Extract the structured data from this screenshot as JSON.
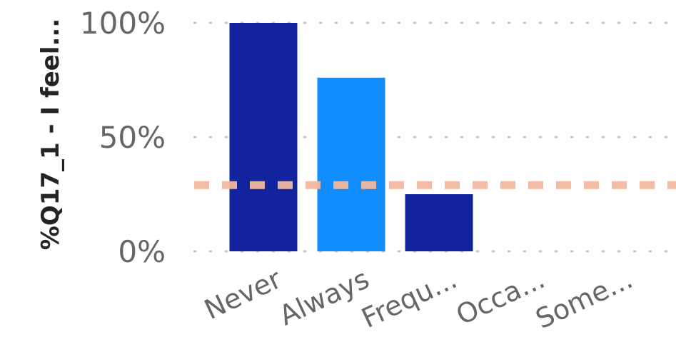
{
  "chart_data": {
    "type": "bar",
    "title": "",
    "xlabel": "",
    "ylabel": "%Q17_1 - I feel...",
    "categories": [
      "Never",
      "Always",
      "Frequ...",
      "Occa...",
      "Some..."
    ],
    "values": [
      100,
      76,
      25,
      0,
      0
    ],
    "bar_colors": [
      "#12239E",
      "#118DFF",
      "#12239E",
      "#12239E",
      "#12239E"
    ],
    "ylim": [
      0,
      100
    ],
    "yticks": [
      0,
      50,
      100
    ],
    "ytick_labels": [
      "0%",
      "50%",
      "100%"
    ],
    "reference_line": {
      "value": 29,
      "color": "#F2B8A0",
      "style": "dashed"
    },
    "grid": true,
    "grid_color": "#C8C6C4"
  }
}
